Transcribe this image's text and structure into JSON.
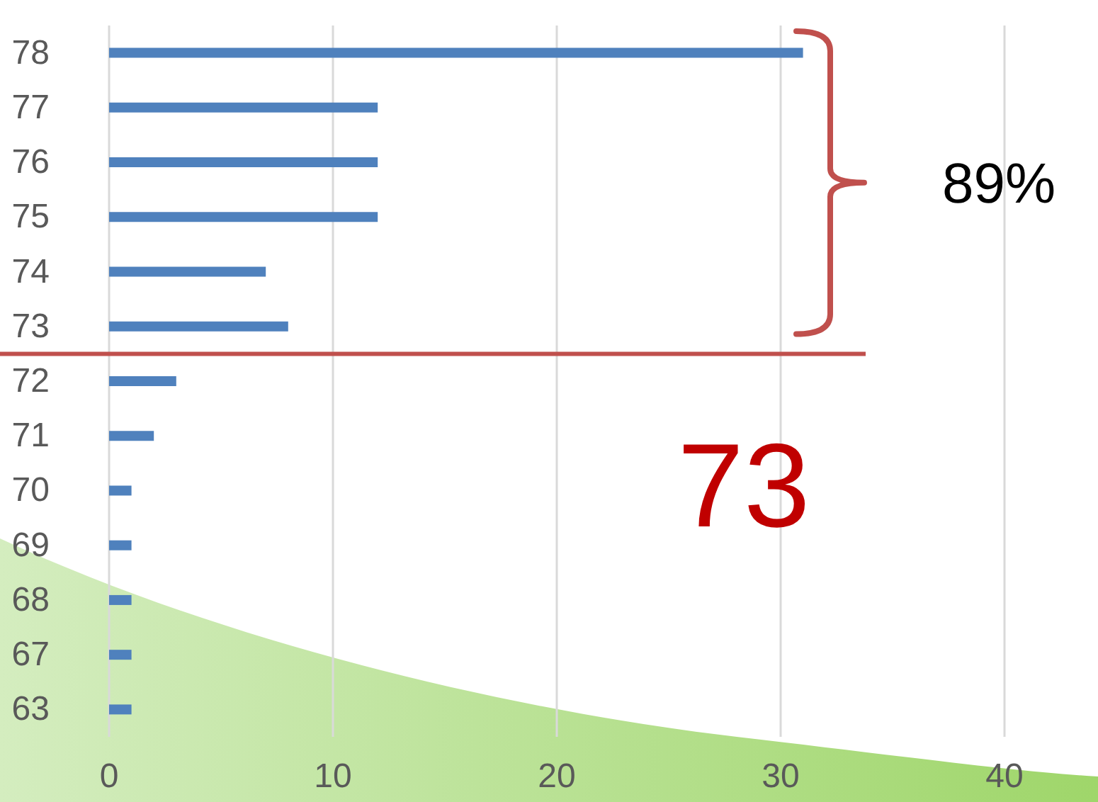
{
  "chart_data": {
    "type": "bar",
    "orientation": "horizontal",
    "categories": [
      "78",
      "77",
      "76",
      "75",
      "74",
      "73",
      "72",
      "71",
      "70",
      "69",
      "68",
      "67",
      "63"
    ],
    "values": [
      31,
      12,
      12,
      12,
      7,
      8,
      3,
      2,
      1,
      1,
      1,
      1,
      1
    ],
    "color": "#4f81bd",
    "xlim": [
      0,
      40
    ],
    "xticks": [
      0,
      10,
      20,
      30,
      40
    ],
    "grid": "x",
    "ref_lines": [
      {
        "axis": "y",
        "value": "73",
        "label": "73",
        "color": "#c0504d"
      }
    ],
    "annotations": [
      "89%"
    ]
  }
}
